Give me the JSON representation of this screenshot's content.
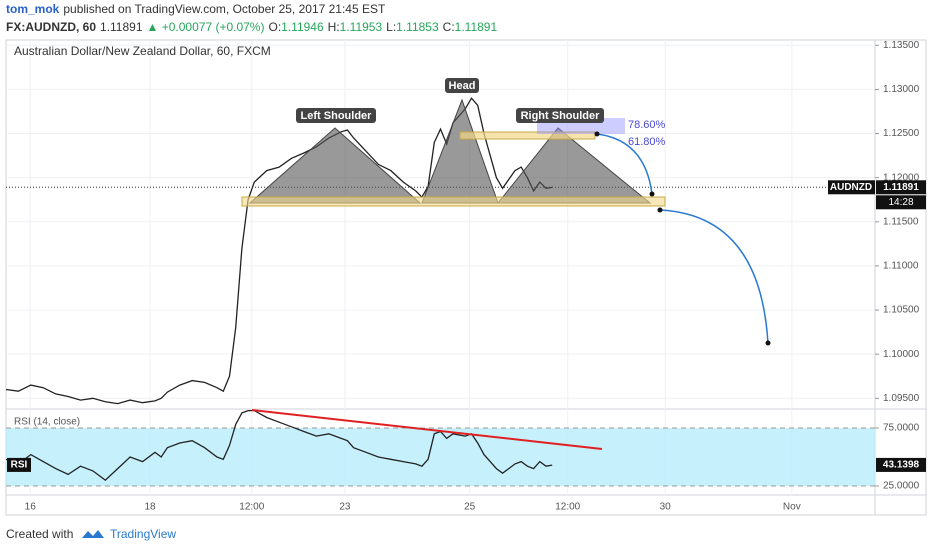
{
  "header": {
    "author": "tom_mok",
    "published": "published on TradingView.com, October 25, 2017 21:45 EST",
    "symbol": "FX:AUDNZD, 60",
    "price": "1.11891",
    "change": "▲ +0.00077 (+0.07%)",
    "ohlc": [
      {
        "key": "O:",
        "value": "1.11946"
      },
      {
        "key": "H:",
        "value": "1.11953"
      },
      {
        "key": "L:",
        "value": "1.11853"
      },
      {
        "key": "C:",
        "value": "1.11891"
      }
    ]
  },
  "footer": {
    "created": "Created with",
    "brand": "TradingView"
  },
  "chart_data": [
    {
      "type": "line",
      "title": "Australian Dollar/New Zealand Dollar, 60, FXCM",
      "x": [
        0,
        2,
        4,
        6,
        8,
        10,
        12,
        14,
        16,
        18,
        20,
        22,
        24,
        25,
        26,
        28,
        30,
        32,
        34,
        35,
        36,
        37,
        38,
        39,
        40,
        42,
        44,
        46,
        48,
        50,
        52,
        54,
        55,
        56,
        58,
        60,
        62,
        64,
        66,
        67,
        68,
        69,
        70,
        71,
        72,
        74,
        75,
        76,
        77,
        78,
        79,
        80,
        81,
        82,
        83,
        84,
        85,
        86,
        87,
        88
      ],
      "series": [
        {
          "name": "AUDNZD",
          "color": "#222222",
          "values": [
            1.096,
            1.0958,
            1.0965,
            1.0962,
            1.0955,
            1.0952,
            1.0948,
            1.095,
            1.0946,
            1.0944,
            1.0948,
            1.0945,
            1.0947,
            1.095,
            1.0957,
            1.0965,
            1.097,
            1.0968,
            1.0962,
            1.0958,
            1.0975,
            1.103,
            1.112,
            1.1175,
            1.1195,
            1.1208,
            1.1212,
            1.1222,
            1.1228,
            1.1235,
            1.1245,
            1.1252,
            1.1254,
            1.1245,
            1.123,
            1.1215,
            1.1208,
            1.1195,
            1.1185,
            1.1178,
            1.119,
            1.124,
            1.1255,
            1.1238,
            1.1262,
            1.1278,
            1.129,
            1.1282,
            1.125,
            1.1225,
            1.12,
            1.1188,
            1.1198,
            1.1208,
            1.1212,
            1.12,
            1.1185,
            1.1195,
            1.1188,
            1.1189
          ]
        }
      ],
      "xlim": [
        0,
        140
      ],
      "ylim": [
        1.0939,
        1.1356
      ],
      "yticks": [
        {
          "value": 1.135,
          "label": "1.13500"
        },
        {
          "value": 1.13,
          "label": "1.13000"
        },
        {
          "value": 1.125,
          "label": "1.12500"
        },
        {
          "value": 1.12,
          "label": "1.12000"
        },
        {
          "value": 1.115,
          "label": "1.11500"
        },
        {
          "value": 1.11,
          "label": "1.11000"
        },
        {
          "value": 1.105,
          "label": "1.10500"
        },
        {
          "value": 1.1,
          "label": "1.10000"
        },
        {
          "value": 1.095,
          "label": "1.09500"
        }
      ],
      "last_value": 1.11891,
      "last_label": "1.11891",
      "countdown": "14:28",
      "annotations": [
        "Left Shoulder",
        "Head",
        "Right Shoulder",
        "78.60%",
        "61.80%"
      ]
    },
    {
      "type": "line",
      "title": "RSI (14, close)",
      "x": [
        0,
        2,
        4,
        6,
        8,
        10,
        12,
        14,
        16,
        18,
        20,
        22,
        24,
        25,
        26,
        28,
        30,
        32,
        34,
        35,
        36,
        37,
        38,
        39,
        40,
        42,
        44,
        46,
        48,
        50,
        52,
        54,
        55,
        56,
        58,
        60,
        62,
        64,
        66,
        67,
        68,
        69,
        70,
        71,
        72,
        74,
        75,
        76,
        77,
        78,
        79,
        80,
        81,
        82,
        83,
        84,
        85,
        86,
        87,
        88
      ],
      "series": [
        {
          "name": "RSI",
          "color": "#222222",
          "values": [
            48,
            44,
            52,
            46,
            40,
            35,
            42,
            38,
            30,
            40,
            50,
            46,
            54,
            50,
            58,
            62,
            64,
            58,
            50,
            48,
            60,
            78,
            88,
            90,
            90,
            84,
            80,
            76,
            72,
            68,
            70,
            66,
            64,
            58,
            54,
            50,
            48,
            46,
            44,
            42,
            48,
            70,
            72,
            66,
            70,
            68,
            70,
            62,
            52,
            46,
            40,
            36,
            40,
            44,
            46,
            42,
            40,
            46,
            42,
            43
          ]
        }
      ],
      "xlim": [
        0,
        140
      ],
      "ylim": [
        17.2,
        90.5
      ],
      "yticks": [
        {
          "value": 75,
          "label": "75.0000"
        },
        {
          "value": 25,
          "label": "25.0000"
        }
      ],
      "last_value": 43.1398,
      "xticks": [
        {
          "value": 3.9,
          "label": "16"
        },
        {
          "value": 23.2,
          "label": "18"
        },
        {
          "value": 39.6,
          "label": "12:00"
        },
        {
          "value": 54.6,
          "label": "23"
        },
        {
          "value": 74.7,
          "label": "25"
        },
        {
          "value": 90.5,
          "label": "12:00"
        },
        {
          "value": 106.2,
          "label": "30"
        },
        {
          "value": 126.6,
          "label": "Nov"
        }
      ]
    }
  ]
}
